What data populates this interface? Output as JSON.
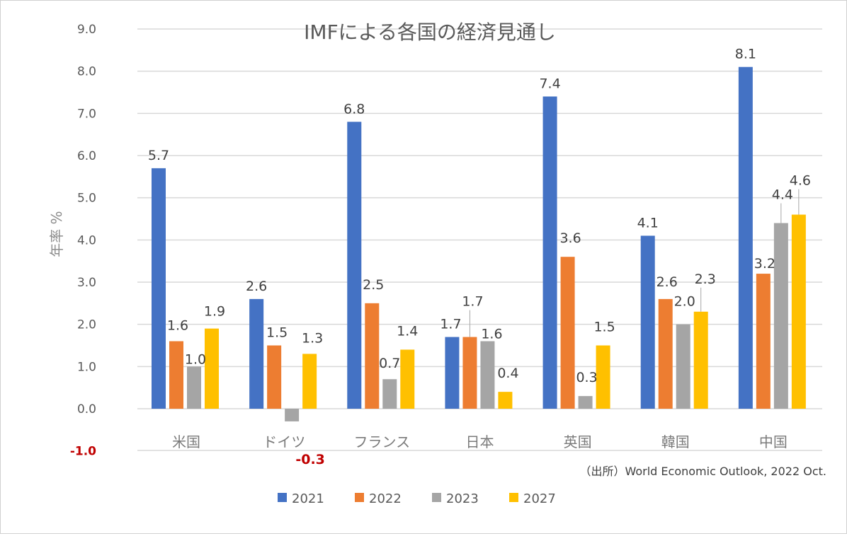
{
  "chart_data": {
    "type": "bar",
    "title": "IMFによる各国の経済見通し",
    "xlabel": "",
    "ylabel": "年率 %",
    "ylim": [
      -1.0,
      9.0
    ],
    "yticks": [
      "9.0",
      "8.0",
      "7.0",
      "6.0",
      "5.0",
      "4.0",
      "3.0",
      "2.0",
      "1.0",
      "0.0",
      "-1.0"
    ],
    "negative_tick_color": "#c00000",
    "grid": true,
    "legend_position": "bottom",
    "categories": [
      "米国",
      "ドイツ",
      "フランス",
      "日本",
      "英国",
      "韓国",
      "中国"
    ],
    "series": [
      {
        "name": "2021",
        "color": "#4472c4",
        "values": [
          5.7,
          2.6,
          6.8,
          1.7,
          7.4,
          4.1,
          8.1
        ],
        "labels": [
          "5.7",
          "2.6",
          "6.8",
          "1.7",
          "7.4",
          "4.1",
          "8.1"
        ]
      },
      {
        "name": "2022",
        "color": "#ed7d31",
        "values": [
          1.6,
          1.5,
          2.5,
          1.7,
          3.6,
          2.6,
          3.2
        ],
        "labels": [
          "1.6",
          "1.5",
          "2.5",
          "1.7",
          "3.6",
          "2.6",
          "3.2"
        ]
      },
      {
        "name": "2023",
        "color": "#a5a5a5",
        "values": [
          1.0,
          -0.3,
          0.7,
          1.6,
          0.3,
          2.0,
          4.4
        ],
        "labels": [
          "1.0",
          "-0.3",
          "0.7",
          "1.6",
          "0.3",
          "2.0",
          "4.4"
        ]
      },
      {
        "name": "2027",
        "color": "#ffc000",
        "values": [
          1.9,
          1.3,
          1.4,
          0.4,
          1.5,
          2.3,
          4.6
        ],
        "labels": [
          "1.9",
          "1.3",
          "1.4",
          "0.4",
          "1.5",
          "2.3",
          "4.6"
        ]
      }
    ],
    "source_note": "（出所）World Economic Outlook, 2022 Oct."
  }
}
